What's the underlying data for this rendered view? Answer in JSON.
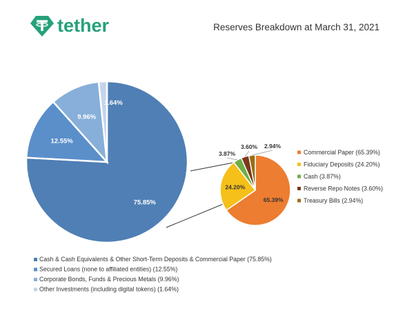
{
  "brand": {
    "name": "tether",
    "logo_color": "#26a17b"
  },
  "title": "Reserves Breakdown at March 31, 2021",
  "chart_data": [
    {
      "type": "pie",
      "categories": [
        "Cash & Cash Equivalents & Other Short-Term Deposits & Commercial Paper (75.85%)",
        "Secured Loans (none to affiliated entities) (12.55%)",
        "Corporate Bonds, Funds & Precious Metals (9.96%)",
        "Other Investments (including digital tokens) (1.64%)"
      ],
      "values": [
        75.85,
        12.55,
        9.96,
        1.64
      ],
      "value_labels": [
        "75.85%",
        "12.55%",
        "9.96%",
        "1.64%"
      ],
      "colors": [
        "#4f7fb4",
        "#5a8fca",
        "#87afd9",
        "#c4d4ea"
      ],
      "legend_position": "bottom-left"
    },
    {
      "type": "pie",
      "categories": [
        "Commercial Paper (65.39%)",
        "Fiduciary Deposits (24.20%)",
        "Cash (3.87%)",
        "Reverse Repo Notes (3.60%)",
        "Treasury Bills (2.94%)"
      ],
      "values": [
        65.39,
        24.2,
        3.87,
        3.6,
        2.94
      ],
      "value_labels": [
        "65.39%",
        "24.20%",
        "3.87%",
        "3.60%",
        "2.94%"
      ],
      "colors": [
        "#ed7d31",
        "#f5c01a",
        "#6fad47",
        "#7a3a1c",
        "#9c6e14"
      ],
      "legend_position": "right"
    }
  ]
}
